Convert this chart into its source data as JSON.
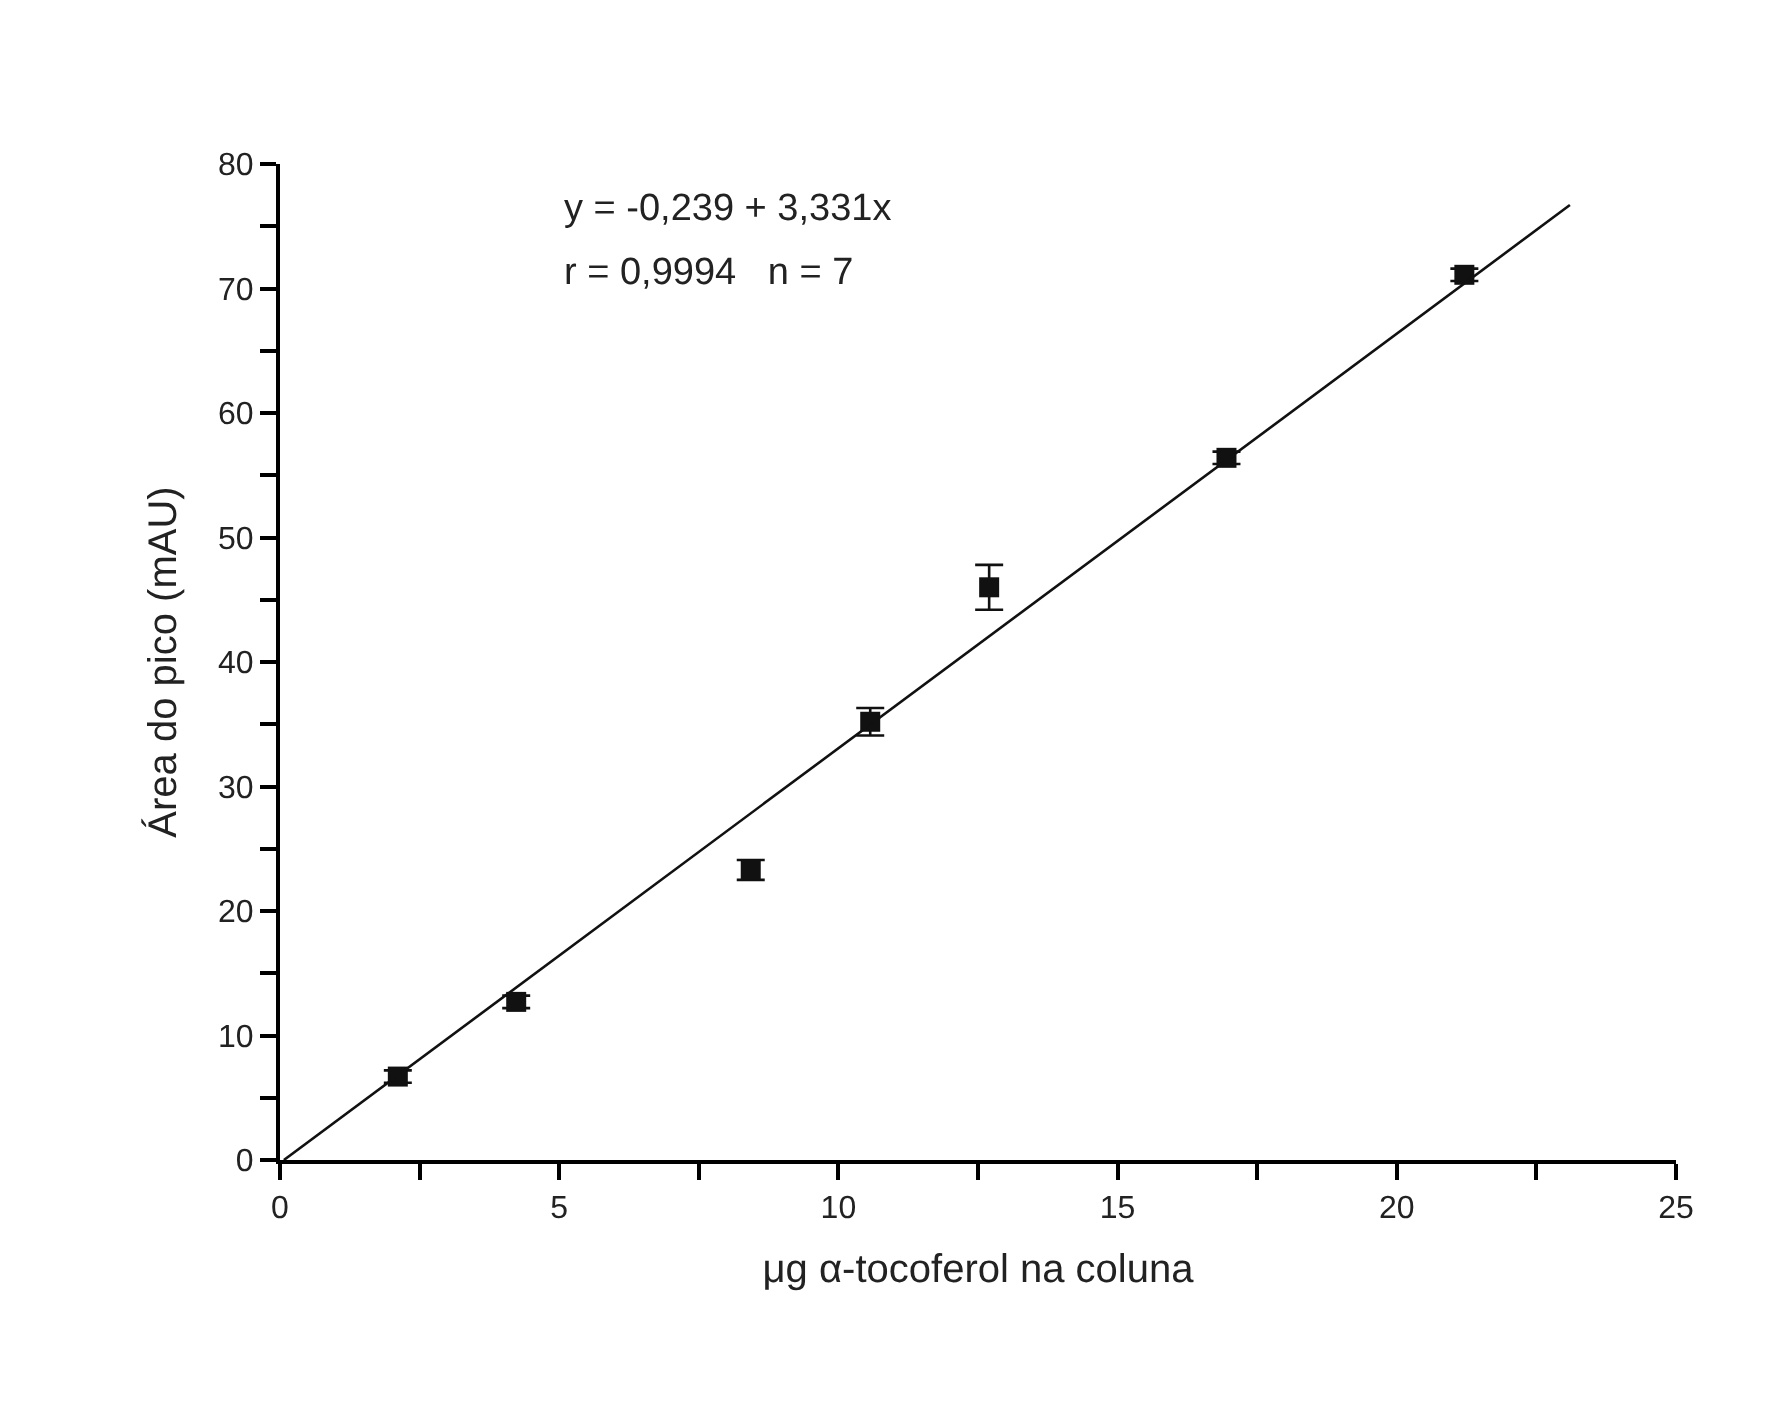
{
  "chart_data": {
    "type": "scatter",
    "xlabel": "μg α-tocoferol na coluna",
    "ylabel": "Área do pico (mAU)",
    "x": [
      2.11,
      4.23,
      8.43,
      10.57,
      12.7,
      16.95,
      21.21
    ],
    "series": [
      {
        "color": "#111111",
        "values": [
          6.7,
          12.7,
          23.3,
          35.2,
          46.0,
          56.4,
          71.1
        ],
        "errors": [
          0.5,
          0.5,
          0.8,
          1.1,
          1.8,
          0.5,
          0.5
        ],
        "marker": "square"
      },
      {
        "type": "line",
        "color": "#111111",
        "x": [
          0.07,
          23.1
        ],
        "values": [
          0,
          76.7
        ],
        "line_style": "solid",
        "marker": "none"
      }
    ],
    "annotations": [
      "y = -0,239 + 3,331x",
      "r = 0,9994   n = 7"
    ],
    "xlim": [
      0,
      25
    ],
    "ylim": [
      0,
      80
    ],
    "xticks": [
      0,
      {
        "value": 2.5,
        "label": null
      },
      5,
      {
        "value": 7.5,
        "label": null
      },
      10,
      {
        "value": 12.5,
        "label": null
      },
      15,
      {
        "value": 17.5,
        "label": null
      },
      20,
      {
        "value": 22.5,
        "label": null
      },
      25
    ],
    "yticks": [
      0,
      {
        "value": 5,
        "label": null
      },
      10,
      {
        "value": 15,
        "label": null
      },
      20,
      {
        "value": 25,
        "label": null
      },
      30,
      {
        "value": 35,
        "label": null
      },
      40,
      {
        "value": 45,
        "label": null
      },
      50,
      {
        "value": 55,
        "label": null
      },
      60,
      {
        "value": 65,
        "label": null
      },
      70,
      {
        "value": 75,
        "label": null
      },
      80
    ]
  }
}
